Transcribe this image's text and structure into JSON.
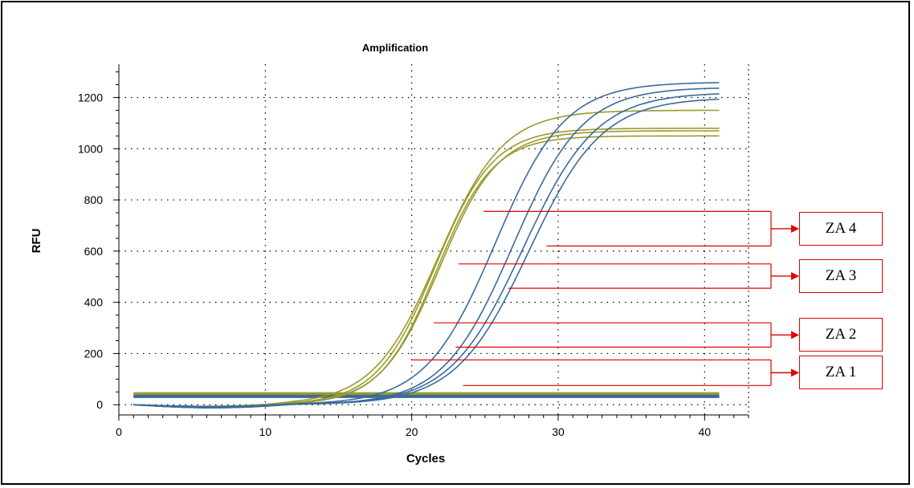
{
  "chart_data": {
    "type": "line",
    "title": "Amplification",
    "xlabel": "Cycles",
    "ylabel": "RFU",
    "xlim": [
      0,
      43
    ],
    "ylim": [
      -40,
      1330
    ],
    "xticks": [
      0,
      10,
      20,
      30,
      40
    ],
    "yticks": [
      0,
      200,
      400,
      600,
      800,
      1000,
      1200
    ],
    "grid": true,
    "colors": {
      "olive": "#9a9a2c",
      "blue": "#3a6a9e",
      "annotation": "#e00000"
    },
    "series": [
      {
        "color": "olive",
        "curve": {
          "base": 0,
          "plateau": 1080,
          "midpoint": 21.6,
          "slope": 0.5
        }
      },
      {
        "color": "olive",
        "curve": {
          "base": 0,
          "plateau": 1050,
          "midpoint": 21.7,
          "slope": 0.52
        }
      },
      {
        "color": "olive",
        "curve": {
          "base": 0,
          "plateau": 1150,
          "midpoint": 21.8,
          "slope": 0.45
        }
      },
      {
        "color": "olive",
        "curve": {
          "base": 0,
          "plateau": 1070,
          "midpoint": 21.9,
          "slope": 0.5
        }
      },
      {
        "color": "blue",
        "curve": {
          "base": 0,
          "plateau": 1260,
          "midpoint": 25.7,
          "slope": 0.42
        }
      },
      {
        "color": "blue",
        "curve": {
          "base": 0,
          "plateau": 1240,
          "midpoint": 26.9,
          "slope": 0.42
        }
      },
      {
        "color": "blue",
        "curve": {
          "base": 0,
          "plateau": 1220,
          "midpoint": 27.6,
          "slope": 0.4
        }
      },
      {
        "color": "blue",
        "curve": {
          "base": 0,
          "plateau": 1200,
          "midpoint": 28.0,
          "slope": 0.4
        }
      }
    ],
    "baselines": [
      {
        "color": "olive",
        "y": 45
      },
      {
        "color": "olive",
        "y": 40
      },
      {
        "color": "blue",
        "y": 35
      },
      {
        "color": "blue",
        "y": 30
      }
    ],
    "annotations": [
      {
        "label": "ZA 4",
        "points": [
          [
            24.9,
            755
          ],
          [
            29.2,
            620
          ]
        ]
      },
      {
        "label": "ZA 3",
        "points": [
          [
            23.2,
            550
          ],
          [
            26.6,
            455
          ]
        ]
      },
      {
        "label": "ZA 2",
        "points": [
          [
            21.5,
            320
          ],
          [
            23.0,
            225
          ]
        ]
      },
      {
        "label": "ZA 1",
        "points": [
          [
            20.0,
            175
          ],
          [
            23.5,
            75
          ]
        ]
      }
    ]
  }
}
